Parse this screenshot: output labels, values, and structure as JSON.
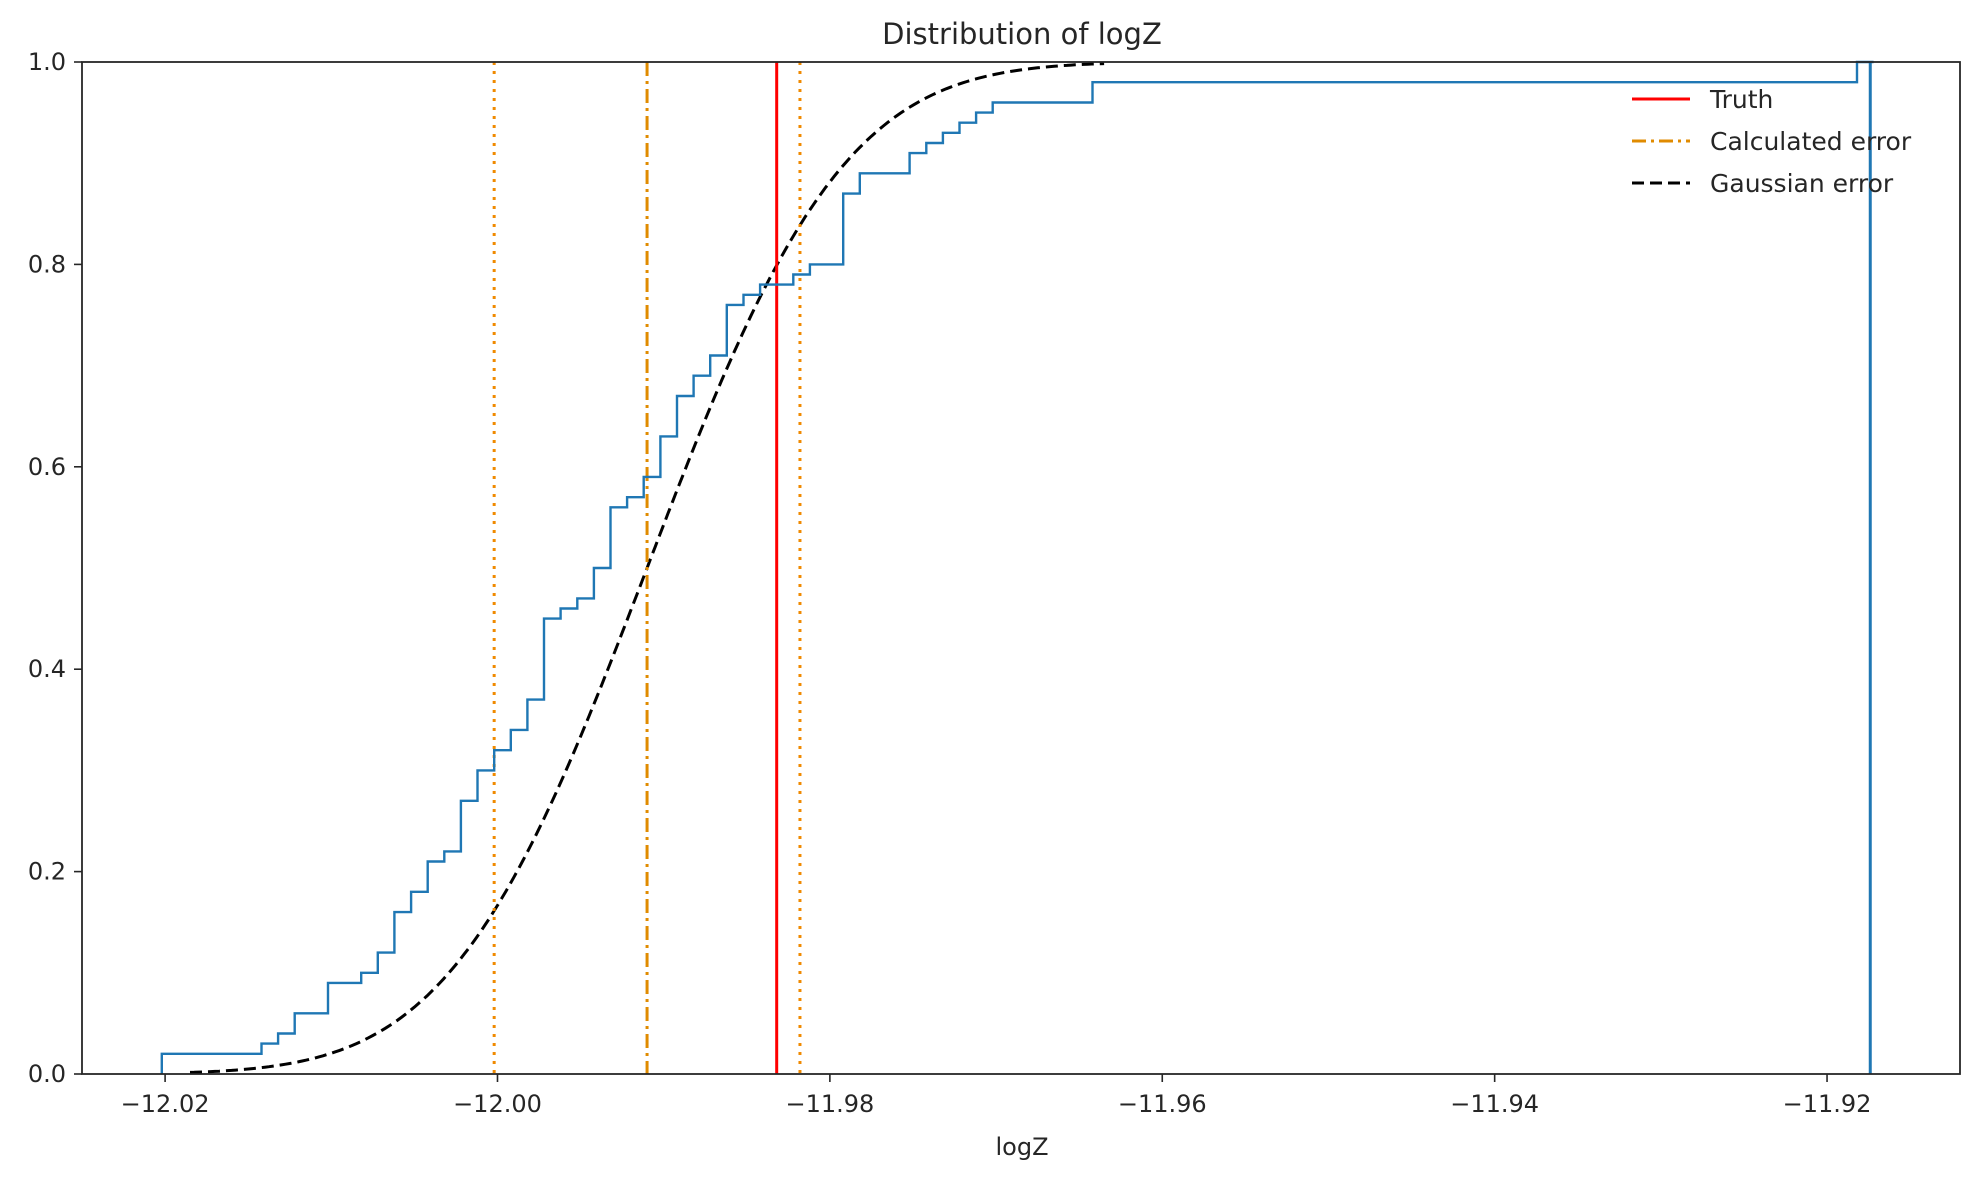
{
  "chart_data": {
    "type": "line",
    "title": "Distribution of logZ",
    "xlabel": "logZ",
    "ylabel": "",
    "xlim": [
      -12.025,
      -11.912
    ],
    "ylim": [
      0.0,
      1.0
    ],
    "grid": false,
    "legend_position": "top-right",
    "x_ticks": [
      -12.02,
      -12.0,
      -11.98,
      -11.96,
      -11.94,
      -11.92
    ],
    "x_tick_labels": [
      "−12.02",
      "−12.00",
      "−11.98",
      "−11.96",
      "−11.94",
      "−11.92"
    ],
    "y_ticks": [
      0.0,
      0.2,
      0.4,
      0.6,
      0.8,
      1.0
    ],
    "y_tick_labels": [
      "0.0",
      "0.2",
      "0.4",
      "0.6",
      "0.8",
      "1.0"
    ],
    "series": [
      {
        "name": "",
        "kind": "step-ecdf",
        "color": "#1f77b4",
        "x": [
          -12.0202,
          -12.0142,
          -12.0132,
          -12.0122,
          -12.0102,
          -12.0082,
          -12.0072,
          -12.0062,
          -12.0052,
          -12.0042,
          -12.0032,
          -12.0022,
          -12.0012,
          -12.0002,
          -11.9992,
          -11.9982,
          -11.9972,
          -11.9962,
          -11.9952,
          -11.9942,
          -11.9932,
          -11.9922,
          -11.9912,
          -11.9902,
          -11.9892,
          -11.9882,
          -11.9872,
          -11.9862,
          -11.9852,
          -11.9842,
          -11.9832,
          -11.9822,
          -11.9812,
          -11.9802,
          -11.9792,
          -11.9782,
          -11.9752,
          -11.9742,
          -11.9732,
          -11.9722,
          -11.9712,
          -11.9702,
          -11.9692,
          -11.9662,
          -11.9642,
          -11.9182,
          -11.9172
        ],
        "y": [
          0.02,
          0.03,
          0.04,
          0.06,
          0.09,
          0.1,
          0.12,
          0.16,
          0.18,
          0.21,
          0.22,
          0.27,
          0.3,
          0.32,
          0.34,
          0.37,
          0.45,
          0.46,
          0.47,
          0.5,
          0.56,
          0.57,
          0.59,
          0.63,
          0.67,
          0.69,
          0.71,
          0.76,
          0.77,
          0.78,
          0.78,
          0.79,
          0.8,
          0.8,
          0.87,
          0.89,
          0.91,
          0.92,
          0.93,
          0.94,
          0.95,
          0.96,
          0.96,
          0.96,
          0.98,
          1.0,
          1.0
        ]
      }
    ],
    "vlines": [
      {
        "name": "Truth",
        "x": -11.9832,
        "color": "#ff0000",
        "style": "solid"
      },
      {
        "name": "Calculated error",
        "x": -11.991,
        "color": "#e08b00",
        "style": "dashdot"
      },
      {
        "name": "",
        "x": -12.0002,
        "color": "#f08a00",
        "style": "dotted"
      },
      {
        "name": "",
        "x": -11.9818,
        "color": "#f08a00",
        "style": "dotted"
      },
      {
        "name": "",
        "x": -11.9174,
        "color": "#1f77b4",
        "style": "solid"
      }
    ],
    "gaussian_cdf": {
      "name": "Gaussian error",
      "color": "#000000",
      "style": "dashed",
      "mean": -11.991,
      "sigma": 0.0093,
      "x_range": [
        -12.0185,
        -11.9635
      ]
    },
    "legend": [
      {
        "label": "Truth",
        "color": "#ff0000",
        "style": "solid"
      },
      {
        "label": "Calculated error",
        "color": "#e08b00",
        "style": "dashdot"
      },
      {
        "label": "Gaussian error",
        "color": "#000000",
        "style": "dashed"
      }
    ]
  }
}
